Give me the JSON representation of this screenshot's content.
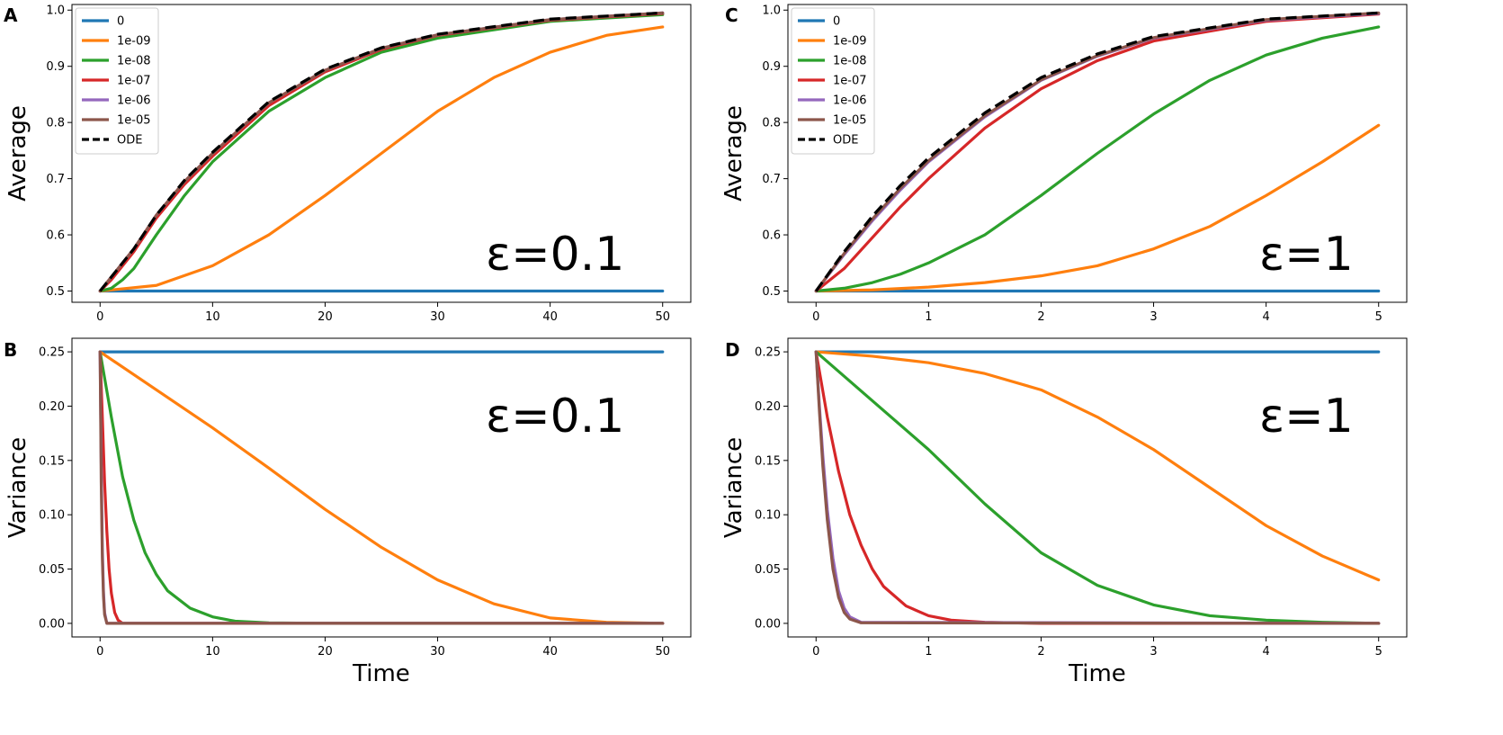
{
  "figure": {
    "legend_entries": [
      {
        "name": "0",
        "color": "#1f77b4"
      },
      {
        "name": "1e-09",
        "color": "#ff7f0e"
      },
      {
        "name": "1e-08",
        "color": "#2ca02c"
      },
      {
        "name": "1e-07",
        "color": "#d62728"
      },
      {
        "name": "1e-06",
        "color": "#9467bd"
      },
      {
        "name": "1e-05",
        "color": "#8c564b"
      },
      {
        "name": "ODE",
        "color": "#000000",
        "dashed": true
      }
    ]
  },
  "chart_data": [
    {
      "id": "A",
      "panel_label": "A",
      "type": "line",
      "annotation": "ε=0.1",
      "xlabel": "",
      "ylabel": "Average",
      "xlim": [
        -2.5,
        52.5
      ],
      "ylim": [
        0.48,
        1.01
      ],
      "xticks": [
        0,
        10,
        20,
        30,
        40,
        50
      ],
      "xtick_labels": [
        "0",
        "10",
        "20",
        "30",
        "40",
        "50"
      ],
      "yticks": [
        0.5,
        0.6,
        0.7,
        0.8,
        0.9,
        1.0
      ],
      "ytick_labels": [
        "0.5",
        "0.6",
        "0.7",
        "0.8",
        "0.9",
        "1.0"
      ],
      "legend": true,
      "series": [
        {
          "name": "0",
          "x": [
            0,
            50
          ],
          "values": [
            0.5,
            0.5
          ]
        },
        {
          "name": "1e-09",
          "x": [
            0,
            5,
            10,
            15,
            20,
            25,
            30,
            35,
            40,
            45,
            50
          ],
          "values": [
            0.5,
            0.51,
            0.545,
            0.6,
            0.67,
            0.745,
            0.82,
            0.88,
            0.925,
            0.955,
            0.97
          ]
        },
        {
          "name": "1e-08",
          "x": [
            0,
            1,
            2,
            3,
            5,
            7.5,
            10,
            15,
            20,
            25,
            30,
            40,
            50
          ],
          "values": [
            0.5,
            0.505,
            0.52,
            0.54,
            0.6,
            0.67,
            0.73,
            0.82,
            0.88,
            0.925,
            0.95,
            0.98,
            0.992
          ]
        },
        {
          "name": "1e-07",
          "x": [
            0,
            1,
            2,
            3,
            5,
            7.5,
            10,
            15,
            20,
            25,
            30,
            40,
            50
          ],
          "values": [
            0.5,
            0.52,
            0.545,
            0.57,
            0.63,
            0.69,
            0.74,
            0.83,
            0.89,
            0.93,
            0.955,
            0.982,
            0.994
          ]
        },
        {
          "name": "1e-06",
          "x": [
            0,
            1,
            2,
            3,
            5,
            7.5,
            10,
            15,
            20,
            25,
            30,
            40,
            50
          ],
          "values": [
            0.5,
            0.525,
            0.55,
            0.575,
            0.635,
            0.695,
            0.745,
            0.835,
            0.893,
            0.932,
            0.956,
            0.983,
            0.995
          ]
        },
        {
          "name": "1e-05",
          "x": [
            0,
            1,
            2,
            3,
            5,
            7.5,
            10,
            15,
            20,
            25,
            30,
            40,
            50
          ],
          "values": [
            0.5,
            0.525,
            0.55,
            0.575,
            0.635,
            0.695,
            0.745,
            0.835,
            0.893,
            0.932,
            0.956,
            0.983,
            0.995
          ]
        },
        {
          "name": "ODE",
          "x": [
            0,
            1,
            2,
            3,
            5,
            7.5,
            10,
            15,
            20,
            25,
            30,
            40,
            50
          ],
          "values": [
            0.5,
            0.525,
            0.55,
            0.575,
            0.635,
            0.697,
            0.747,
            0.837,
            0.895,
            0.933,
            0.957,
            0.984,
            0.995
          ]
        }
      ]
    },
    {
      "id": "B",
      "panel_label": "B",
      "type": "line",
      "annotation": "ε=0.1",
      "xlabel": "Time",
      "ylabel": "Variance",
      "xlim": [
        -2.5,
        52.5
      ],
      "ylim": [
        -0.0125,
        0.2625
      ],
      "xticks": [
        0,
        10,
        20,
        30,
        40,
        50
      ],
      "xtick_labels": [
        "0",
        "10",
        "20",
        "30",
        "40",
        "50"
      ],
      "yticks": [
        0.0,
        0.05,
        0.1,
        0.15,
        0.2,
        0.25
      ],
      "ytick_labels": [
        "0.00",
        "0.05",
        "0.10",
        "0.15",
        "0.20",
        "0.25"
      ],
      "legend": false,
      "series": [
        {
          "name": "0",
          "x": [
            0,
            50
          ],
          "values": [
            0.25,
            0.25
          ]
        },
        {
          "name": "1e-09",
          "x": [
            0,
            5,
            10,
            15,
            20,
            25,
            30,
            35,
            40,
            45,
            50
          ],
          "values": [
            0.25,
            0.215,
            0.18,
            0.143,
            0.105,
            0.07,
            0.04,
            0.018,
            0.005,
            0.001,
            0.0
          ]
        },
        {
          "name": "1e-08",
          "x": [
            0,
            0.5,
            1,
            2,
            3,
            4,
            5,
            6,
            8,
            10,
            12,
            15,
            20,
            50
          ],
          "values": [
            0.25,
            0.22,
            0.19,
            0.135,
            0.095,
            0.065,
            0.045,
            0.03,
            0.014,
            0.006,
            0.002,
            0.0005,
            0.0,
            0.0
          ]
        },
        {
          "name": "1e-07",
          "x": [
            0,
            0.2,
            0.4,
            0.6,
            0.8,
            1.0,
            1.3,
            1.6,
            2,
            50
          ],
          "values": [
            0.25,
            0.19,
            0.13,
            0.085,
            0.05,
            0.028,
            0.01,
            0.003,
            0.0,
            0.0
          ]
        },
        {
          "name": "1e-06",
          "x": [
            0,
            0.05,
            0.1,
            0.2,
            0.3,
            0.4,
            0.6,
            50
          ],
          "values": [
            0.25,
            0.2,
            0.15,
            0.07,
            0.03,
            0.01,
            0.0,
            0.0
          ]
        },
        {
          "name": "1e-05",
          "x": [
            0,
            0.05,
            0.1,
            0.2,
            0.3,
            0.4,
            0.6,
            50
          ],
          "values": [
            0.25,
            0.19,
            0.13,
            0.06,
            0.025,
            0.008,
            0.0,
            0.0
          ]
        }
      ]
    },
    {
      "id": "C",
      "panel_label": "C",
      "type": "line",
      "annotation": "ε=1",
      "xlabel": "",
      "ylabel": "Average",
      "xlim": [
        -0.25,
        5.25
      ],
      "ylim": [
        0.48,
        1.01
      ],
      "xticks": [
        0,
        1,
        2,
        3,
        4,
        5
      ],
      "xtick_labels": [
        "0",
        "1",
        "2",
        "3",
        "4",
        "5"
      ],
      "yticks": [
        0.5,
        0.6,
        0.7,
        0.8,
        0.9,
        1.0
      ],
      "ytick_labels": [
        "0.5",
        "0.6",
        "0.7",
        "0.8",
        "0.9",
        "1.0"
      ],
      "legend": true,
      "series": [
        {
          "name": "0",
          "x": [
            0,
            5
          ],
          "values": [
            0.5,
            0.5
          ]
        },
        {
          "name": "1e-09",
          "x": [
            0,
            0.5,
            1,
            1.5,
            2,
            2.5,
            3,
            3.5,
            4,
            4.5,
            5
          ],
          "values": [
            0.5,
            0.502,
            0.507,
            0.515,
            0.527,
            0.545,
            0.575,
            0.615,
            0.67,
            0.73,
            0.795
          ]
        },
        {
          "name": "1e-08",
          "x": [
            0,
            0.25,
            0.5,
            0.75,
            1,
            1.5,
            2,
            2.5,
            3,
            3.5,
            4,
            4.5,
            5
          ],
          "values": [
            0.5,
            0.505,
            0.515,
            0.53,
            0.55,
            0.6,
            0.67,
            0.745,
            0.815,
            0.875,
            0.92,
            0.95,
            0.97
          ]
        },
        {
          "name": "1e-07",
          "x": [
            0,
            0.25,
            0.5,
            0.75,
            1,
            1.5,
            2,
            2.5,
            3,
            4,
            5
          ],
          "values": [
            0.5,
            0.54,
            0.595,
            0.65,
            0.7,
            0.79,
            0.86,
            0.91,
            0.945,
            0.98,
            0.993
          ]
        },
        {
          "name": "1e-06",
          "x": [
            0,
            0.25,
            0.5,
            0.75,
            1,
            1.5,
            2,
            2.5,
            3,
            4,
            5
          ],
          "values": [
            0.5,
            0.565,
            0.625,
            0.68,
            0.73,
            0.81,
            0.875,
            0.918,
            0.95,
            0.982,
            0.994
          ]
        },
        {
          "name": "1e-05",
          "x": [
            0,
            0.25,
            0.5,
            0.75,
            1,
            1.5,
            2,
            2.5,
            3,
            4,
            5
          ],
          "values": [
            0.5,
            0.567,
            0.628,
            0.683,
            0.732,
            0.812,
            0.876,
            0.919,
            0.951,
            0.983,
            0.995
          ]
        },
        {
          "name": "ODE",
          "x": [
            0,
            0.25,
            0.5,
            0.75,
            1,
            1.5,
            2,
            2.5,
            3,
            4,
            5
          ],
          "values": [
            0.5,
            0.57,
            0.633,
            0.688,
            0.737,
            0.817,
            0.88,
            0.922,
            0.953,
            0.984,
            0.995
          ]
        }
      ]
    },
    {
      "id": "D",
      "panel_label": "D",
      "type": "line",
      "annotation": "ε=1",
      "xlabel": "Time",
      "ylabel": "Variance",
      "xlim": [
        -0.25,
        5.25
      ],
      "ylim": [
        -0.0125,
        0.2625
      ],
      "xticks": [
        0,
        1,
        2,
        3,
        4,
        5
      ],
      "xtick_labels": [
        "0",
        "1",
        "2",
        "3",
        "4",
        "5"
      ],
      "yticks": [
        0.0,
        0.05,
        0.1,
        0.15,
        0.2,
        0.25
      ],
      "ytick_labels": [
        "0.00",
        "0.05",
        "0.10",
        "0.15",
        "0.20",
        "0.25"
      ],
      "legend": false,
      "series": [
        {
          "name": "0",
          "x": [
            0,
            5
          ],
          "values": [
            0.25,
            0.25
          ]
        },
        {
          "name": "1e-09",
          "x": [
            0,
            0.5,
            1,
            1.5,
            2,
            2.5,
            3,
            3.5,
            4,
            4.5,
            5
          ],
          "values": [
            0.25,
            0.246,
            0.24,
            0.23,
            0.215,
            0.19,
            0.16,
            0.125,
            0.09,
            0.062,
            0.04
          ]
        },
        {
          "name": "1e-08",
          "x": [
            0,
            0.5,
            1,
            1.5,
            2,
            2.5,
            3,
            3.5,
            4,
            4.5,
            5
          ],
          "values": [
            0.25,
            0.205,
            0.16,
            0.11,
            0.065,
            0.035,
            0.017,
            0.007,
            0.003,
            0.001,
            0.0
          ]
        },
        {
          "name": "1e-07",
          "x": [
            0,
            0.1,
            0.2,
            0.3,
            0.4,
            0.5,
            0.6,
            0.8,
            1,
            1.2,
            1.5,
            2,
            5
          ],
          "values": [
            0.25,
            0.19,
            0.14,
            0.1,
            0.072,
            0.05,
            0.034,
            0.016,
            0.007,
            0.003,
            0.001,
            0.0,
            0.0
          ]
        },
        {
          "name": "1e-06",
          "x": [
            0,
            0.03,
            0.06,
            0.1,
            0.15,
            0.2,
            0.25,
            0.3,
            0.4,
            5
          ],
          "values": [
            0.25,
            0.2,
            0.155,
            0.105,
            0.06,
            0.03,
            0.014,
            0.006,
            0.001,
            0.0
          ]
        },
        {
          "name": "1e-05",
          "x": [
            0,
            0.03,
            0.06,
            0.1,
            0.15,
            0.2,
            0.25,
            0.3,
            0.4,
            5
          ],
          "values": [
            0.25,
            0.195,
            0.145,
            0.095,
            0.05,
            0.024,
            0.01,
            0.004,
            0.0005,
            0.0
          ]
        }
      ]
    }
  ]
}
